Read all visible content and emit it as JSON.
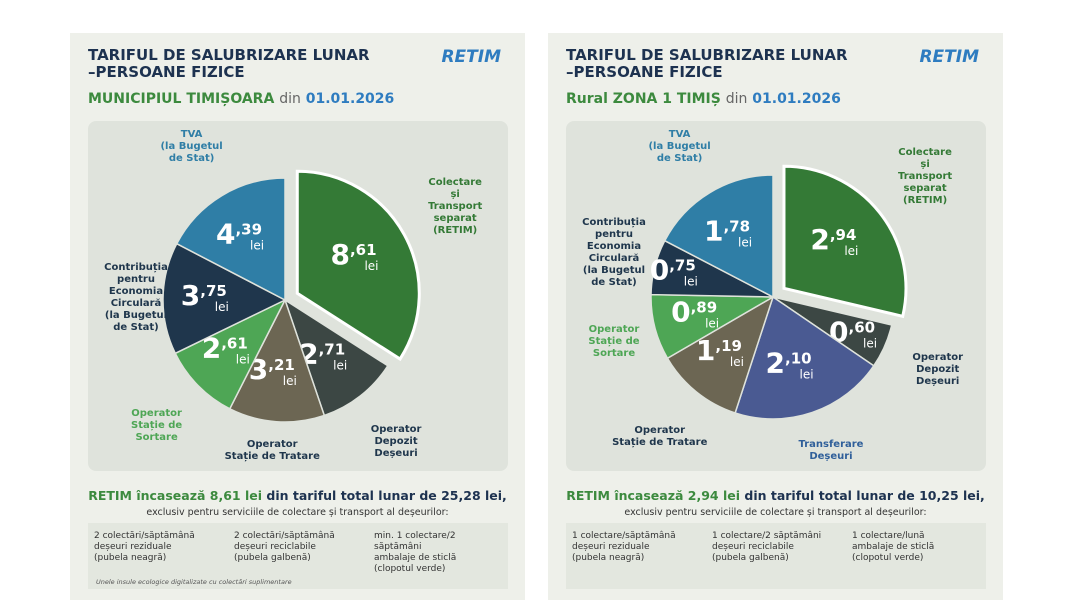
{
  "chart_data": [
    {
      "type": "pie",
      "title": "TARIFUL DE SALUBRIZARE LUNAR\n–PERSOANE FIZICE",
      "logo": "RETIM",
      "subtitle_area": "MUNICIPIUL TIMIȘOARA",
      "subtitle_from": "din",
      "subtitle_date": "01.01.2026",
      "categories": [
        "Colectare și\nTransport\nseparat\n(RETIM)",
        "Operator\nDepozit\nDeșeuri",
        "Operator\nStație de Tratare",
        "Operator\nStație de\nSortare",
        "Contribuția\npentru\nEconomia\nCirculară\n(la Bugetul\nde Stat)",
        "TVA\n(la Bugetul\nde Stat)"
      ],
      "values": [
        8.61,
        2.71,
        3.21,
        2.61,
        3.75,
        4.39
      ],
      "value_labels": [
        "8,61",
        "2,71",
        "3,21",
        "2,61",
        "3,75",
        "4,39"
      ],
      "unit": "lei",
      "colors": [
        "#347a36",
        "#3c4744",
        "#6c6653",
        "#4ea655",
        "#1f364c",
        "#2f7ea6"
      ],
      "label_colors": [
        "#347a36",
        "#1f364c",
        "#1f364c",
        "#4ea655",
        "#1f364c",
        "#2f7ea6"
      ],
      "explode_first": true,
      "summary_highlight": "RETIM încasează 8,61 lei",
      "summary_rest": "din tariful total lunar de 25,28 lei,",
      "summary_note": "exclusiv pentru serviciile de colectare și transport al deșeurilor:",
      "footer_columns": [
        "2 colectări/săptămână\ndeșeuri reziduale\n(pubela neagră)",
        "2 colectări/săptămână\ndeșeuri reciclabile\n(pubela galbenă)",
        "min. 1 colectare/2 săptămâni\nambalaje de sticlă\n(clopotul verde)"
      ],
      "footnote": "Unele insule ecologice digitalizate cu colectări suplimentare"
    },
    {
      "type": "pie",
      "title": "TARIFUL DE SALUBRIZARE LUNAR\n–PERSOANE FIZICE",
      "logo": "RETIM",
      "subtitle_area": "Rural ZONA 1 TIMIȘ",
      "subtitle_from": "din",
      "subtitle_date": "01.01.2026",
      "categories": [
        "Colectare și\nTransport\nseparat\n(RETIM)",
        "Operator\nDepozit\nDeșeuri",
        "Transferare\nDeșeuri",
        "Operator\nStație de Tratare",
        "Operator\nStație de\nSortare",
        "Contribuția\npentru\nEconomia\nCirculară\n(la Bugetul\nde Stat)",
        "TVA\n(la Bugetul\nde Stat)"
      ],
      "values": [
        2.94,
        0.6,
        2.1,
        1.19,
        0.89,
        0.75,
        1.78
      ],
      "value_labels": [
        "2,94",
        "0,60",
        "2,10",
        "1,19",
        "0,89",
        "0,75",
        "1,78"
      ],
      "unit": "lei",
      "colors": [
        "#347a36",
        "#3c4744",
        "#4a5a92",
        "#6c6653",
        "#4ea655",
        "#1f364c",
        "#2f7ea6"
      ],
      "label_colors": [
        "#347a36",
        "#1f364c",
        "#2f5f9a",
        "#1f364c",
        "#4ea655",
        "#1f364c",
        "#2f7ea6"
      ],
      "explode_first": true,
      "summary_highlight": "RETIM încasează 2,94 lei",
      "summary_rest": "din tariful total lunar de 10,25 lei,",
      "summary_note": "exclusiv pentru serviciile de colectare și transport al deșeurilor:",
      "footer_columns": [
        "1 colectare/săptămână\ndeșeuri reziduale\n(pubela neagră)",
        "1 colectare/2 săptămâni\ndeșeuri reciclabile\n(pubela galbenă)",
        "1 colectare/lună\nambalaje de sticlă\n(clopotul verde)"
      ]
    }
  ]
}
